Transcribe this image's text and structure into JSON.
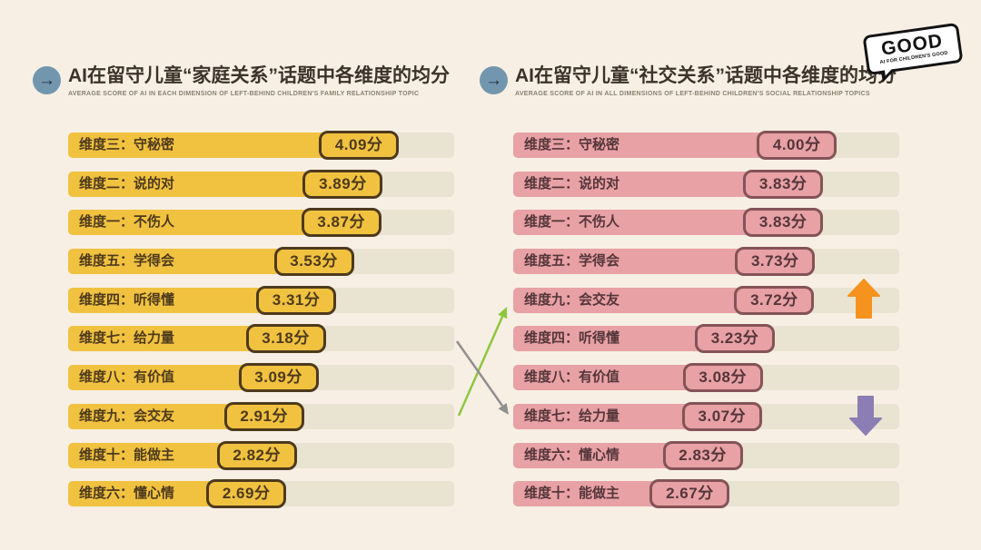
{
  "page": {
    "background": "#F7EFE4"
  },
  "logo": {
    "word": "GOOD",
    "subtext": "AI FOR CHILDREN'S GOOD"
  },
  "chart_data": [
    {
      "type": "bar",
      "orientation": "horizontal",
      "title": "AI在留守儿童“家庭关系”话题中各维度的均分",
      "subtitle": "AVERAGE SCORE OF AI IN EACH DIMENSION OF LEFT-BEHIND CHILDREN'S FAMILY RELATIONSHIP TOPIC",
      "categories": [
        "维度三：守秘密",
        "维度二：说的对",
        "维度一：不伤人",
        "维度五：学得会",
        "维度四：听得懂",
        "维度七：给力量",
        "维度八：有价值",
        "维度九：会交友",
        "维度十：能做主",
        "维度六：懂心情"
      ],
      "values": [
        4.09,
        3.89,
        3.87,
        3.53,
        3.31,
        3.18,
        3.09,
        2.91,
        2.82,
        2.69
      ],
      "unit": "分",
      "xlim": [
        0,
        4.8
      ],
      "grid": false,
      "legend": false,
      "bar_color": "#F1C240",
      "badge_bg": "#F1C240",
      "badge_border": "#4D3A1D",
      "label_color": "#4D3A1D",
      "track_color": "#E9E3D2",
      "markers": []
    },
    {
      "type": "bar",
      "orientation": "horizontal",
      "title": "AI在留守儿童“社交关系”话题中各维度的均分",
      "subtitle": "AVERAGE SCORE OF AI IN ALL DIMENSIONS OF LEFT-BEHIND CHILDREN'S SOCIAL RELATIONSHIP TOPICS",
      "categories": [
        "维度三：守秘密",
        "维度二：说的对",
        "维度一：不伤人",
        "维度五：学得会",
        "维度九：会交友",
        "维度四：听得懂",
        "维度八：有价值",
        "维度七：给力量",
        "维度六：懂心情",
        "维度十：能做主"
      ],
      "values": [
        4.0,
        3.83,
        3.83,
        3.73,
        3.72,
        3.23,
        3.08,
        3.07,
        2.83,
        2.67
      ],
      "unit": "分",
      "xlim": [
        0,
        4.8
      ],
      "grid": false,
      "legend": false,
      "bar_color": "#E8A1A5",
      "badge_bg": "#E8A1A5",
      "badge_border": "#845357",
      "label_color": "#54363A",
      "track_color": "#E9E3D2",
      "markers": [
        {
          "index": 4,
          "category": "维度九：会交友",
          "type": "up",
          "color": "#F6921E"
        },
        {
          "index": 7,
          "category": "维度七：给力量",
          "type": "down",
          "color": "#8B7EB4"
        }
      ]
    }
  ],
  "annotations": {
    "connectors": [
      {
        "category": "会交友",
        "from_chart": 0,
        "to_chart": 1,
        "direction": "rank-up",
        "color": "#8DC63F"
      },
      {
        "category": "给力量",
        "from_chart": 0,
        "to_chart": 1,
        "direction": "rank-down",
        "color": "#8F8F8F"
      }
    ]
  },
  "header_icon": {
    "glyph": "→",
    "circle_color": "#7296AE"
  }
}
